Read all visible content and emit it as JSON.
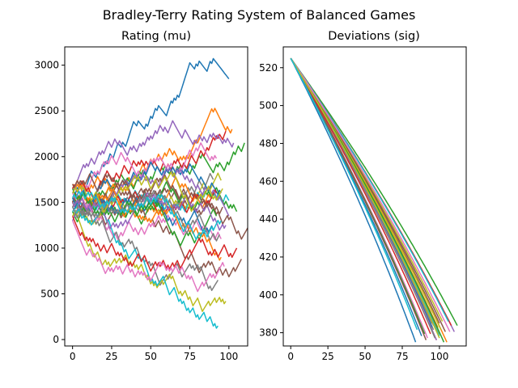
{
  "figure": {
    "suptitle": "Bradley-Terry Rating System of Balanced Games"
  },
  "palette": [
    "#1f77b4",
    "#ff7f0e",
    "#2ca02c",
    "#d62728",
    "#9467bd",
    "#8c564b",
    "#e377c2",
    "#7f7f7f",
    "#bcbd22",
    "#17becf"
  ],
  "chart_data": [
    {
      "type": "line",
      "title": "Rating (mu)",
      "xlabel": "",
      "ylabel": "",
      "xlim": [
        -5,
        112
      ],
      "ylim": [
        -70,
        3200
      ],
      "xticks": [
        0,
        25,
        50,
        75,
        100
      ],
      "yticks": [
        0,
        500,
        1000,
        1500,
        2000,
        2500,
        3000
      ],
      "grid": false,
      "legend": "none",
      "series_generation": "random-walk",
      "series": [
        {
          "color": "#1f77b4",
          "start": 1500,
          "end": 2850,
          "length": 100
        },
        {
          "color": "#ff7f0e",
          "start": 1650,
          "end": 2300,
          "length": 102
        },
        {
          "color": "#2ca02c",
          "start": 1500,
          "end": 2150,
          "length": 110
        },
        {
          "color": "#d62728",
          "start": 1500,
          "end": 2280,
          "length": 98
        },
        {
          "color": "#9467bd",
          "start": 1600,
          "end": 2150,
          "length": 103
        },
        {
          "color": "#8c564b",
          "start": 1450,
          "end": 1220,
          "length": 112
        },
        {
          "color": "#e377c2",
          "start": 1600,
          "end": 1980,
          "length": 92
        },
        {
          "color": "#7f7f7f",
          "start": 1400,
          "end": 1750,
          "length": 90
        },
        {
          "color": "#bcbd22",
          "start": 1550,
          "end": 1740,
          "length": 95
        },
        {
          "color": "#17becf",
          "start": 1500,
          "end": 1520,
          "length": 100
        },
        {
          "color": "#1f77b4",
          "start": 1450,
          "end": 1600,
          "length": 95
        },
        {
          "color": "#ff7f0e",
          "start": 1700,
          "end": 1550,
          "length": 88
        },
        {
          "color": "#2ca02c",
          "start": 1400,
          "end": 1400,
          "length": 105
        },
        {
          "color": "#d62728",
          "start": 1650,
          "end": 1600,
          "length": 92
        },
        {
          "color": "#9467bd",
          "start": 1300,
          "end": 1350,
          "length": 100
        },
        {
          "color": "#8c564b",
          "start": 1500,
          "end": 880,
          "length": 108
        },
        {
          "color": "#e377c2",
          "start": 1550,
          "end": 1100,
          "length": 95
        },
        {
          "color": "#7f7f7f",
          "start": 1450,
          "end": 650,
          "length": 93
        },
        {
          "color": "#bcbd22",
          "start": 1350,
          "end": 420,
          "length": 98
        },
        {
          "color": "#17becf",
          "start": 1400,
          "end": 150,
          "length": 93
        },
        {
          "color": "#1f77b4",
          "start": 1550,
          "end": 1200,
          "length": 90
        },
        {
          "color": "#ff7f0e",
          "start": 1500,
          "end": 900,
          "length": 95
        },
        {
          "color": "#2ca02c",
          "start": 1650,
          "end": 1350,
          "length": 92
        },
        {
          "color": "#d62728",
          "start": 1350,
          "end": 1000,
          "length": 105
        },
        {
          "color": "#9467bd",
          "start": 1500,
          "end": 1250,
          "length": 98
        },
        {
          "color": "#8c564b",
          "start": 1700,
          "end": 1450,
          "length": 96
        },
        {
          "color": "#e377c2",
          "start": 1300,
          "end": 800,
          "length": 97
        },
        {
          "color": "#7f7f7f",
          "start": 1450,
          "end": 1150,
          "length": 94
        },
        {
          "color": "#bcbd22",
          "start": 1600,
          "end": 1650,
          "length": 96
        },
        {
          "color": "#17becf",
          "start": 1550,
          "end": 1300,
          "length": 95
        }
      ]
    },
    {
      "type": "line",
      "title": "Deviations (sig)",
      "xlabel": "",
      "ylabel": "",
      "xlim": [
        -5,
        118
      ],
      "ylim": [
        373,
        531
      ],
      "xticks": [
        0,
        25,
        50,
        75,
        100
      ],
      "yticks": [
        380,
        400,
        420,
        440,
        460,
        480,
        500,
        520
      ],
      "grid": false,
      "legend": "none",
      "series_generation": "decay",
      "start_value": 525,
      "end_value_range": [
        375,
        386
      ],
      "series_lengths": [
        84,
        100,
        112,
        98,
        110,
        100,
        92,
        96,
        102,
        100,
        95,
        105,
        90,
        108,
        98,
        104,
        93,
        97,
        101,
        106,
        88,
        99,
        103,
        94,
        96,
        91,
        107,
        95,
        100,
        85
      ]
    }
  ]
}
